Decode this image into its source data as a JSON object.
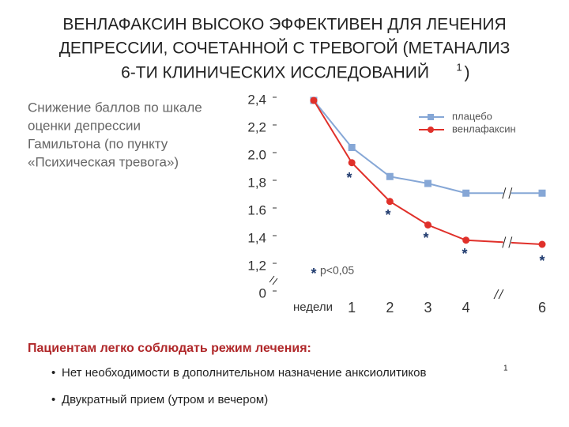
{
  "chart_data": {
    "type": "line",
    "title": [
      "ВЕНЛАФАКСИН ВЫСОКО ЭФФЕКТИВЕН ДЛЯ ЛЕЧЕНИЯ",
      "ДЕПРЕССИИ, СОЧЕТАННОЙ С ТРЕВОГОЙ (МЕТАНАЛИЗ",
      "6-ТИ КЛИНИЧЕСКИХ ИССЛЕДОВАНИЙ"
    ],
    "title_sup": "1",
    "title_end": ")",
    "ylabel": [
      "Снижение баллов по шкале",
      "оценки депрессии",
      "Гамильтона (по пункту",
      "«Психическая тревога»)"
    ],
    "xlabel": "недели",
    "x": [
      0,
      1,
      2,
      3,
      4,
      6
    ],
    "xlim": [
      0,
      6
    ],
    "xticks": [
      1,
      2,
      3,
      4,
      6
    ],
    "ylim": [
      0,
      2.4
    ],
    "ybreak": [
      0,
      1.0
    ],
    "yticks": [
      {
        "value": 2.4,
        "label": "2,4"
      },
      {
        "value": 2.2,
        "label": "2,2"
      },
      {
        "value": 2.0,
        "label": "2.0"
      },
      {
        "value": 1.8,
        "label": "1,8"
      },
      1.6,
      {
        "value": 1.4,
        "label": "1,4"
      },
      {
        "value": 1.2,
        "label": "1,2"
      },
      0
    ],
    "series": [
      {
        "name": "плацебо",
        "color": "#86a7d6",
        "marker": "square",
        "values": [
          2.4,
          2.06,
          1.85,
          1.8,
          1.73,
          1.73
        ]
      },
      {
        "name": "венлафаксин",
        "color": "#e0302a",
        "marker": "circle",
        "values": [
          2.4,
          1.95,
          1.67,
          1.5,
          1.39,
          1.36
        ]
      }
    ],
    "significance_label": "р<0,05",
    "legend": "upper right"
  },
  "notes": {
    "heading": "Пациентам легко соблюдать режим лечения:",
    "bullets": [
      {
        "text": "Нет необходимости в дополнительном назначение анксиолитиков",
        "sup": "1"
      },
      {
        "text": "Двукратный прием (утром и вечером)"
      }
    ]
  }
}
